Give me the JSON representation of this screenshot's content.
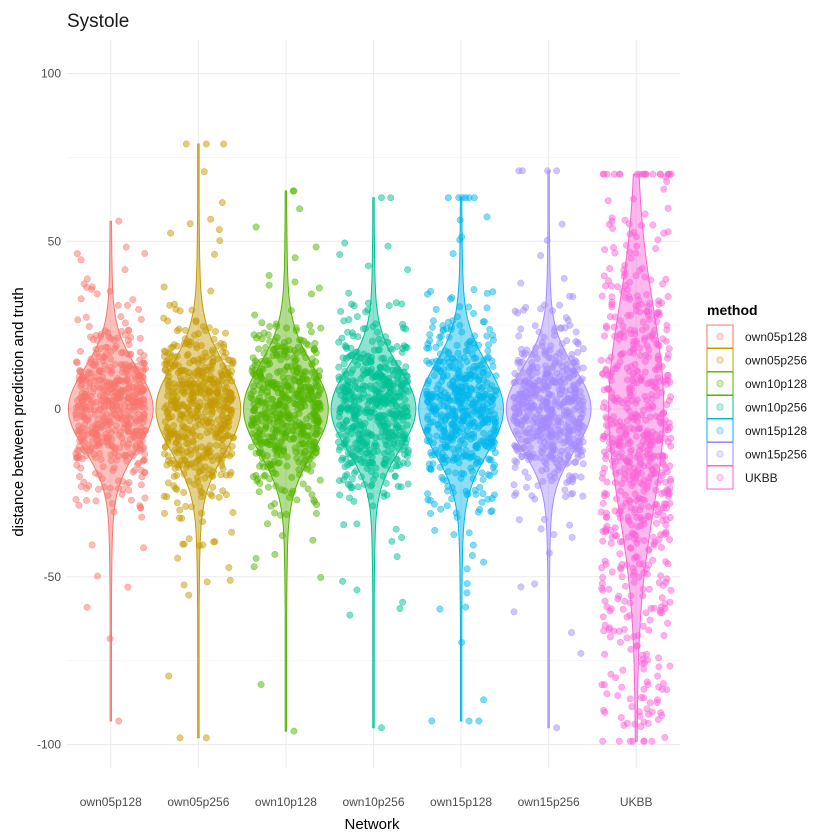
{
  "chart_data": {
    "type": "violin-jitter",
    "title": "Systole",
    "xlabel": "Network",
    "ylabel": "distance between prediction and truth",
    "ylim": [
      -107,
      110
    ],
    "yticks": [
      100,
      50,
      0,
      -50,
      -100
    ],
    "categories": [
      "own05p128",
      "own05p256",
      "own10p128",
      "own10p256",
      "own15p128",
      "own15p256",
      "UKBB"
    ],
    "legend": {
      "title": "method",
      "entries": [
        "own05p128",
        "own05p256",
        "own10p128",
        "own10p256",
        "own15p128",
        "own15p256",
        "UKBB"
      ],
      "position": "right"
    },
    "series": [
      {
        "name": "own05p128",
        "color": "#F8766D",
        "min": -93,
        "max": 56,
        "spread": 12,
        "n": 520
      },
      {
        "name": "own05p256",
        "color": "#C49A00",
        "min": -98,
        "max": 79,
        "spread": 13,
        "n": 520
      },
      {
        "name": "own10p128",
        "color": "#53B400",
        "min": -96,
        "max": 65,
        "spread": 13,
        "n": 520
      },
      {
        "name": "own10p256",
        "color": "#00C094",
        "min": -95,
        "max": 63,
        "spread": 12,
        "n": 520
      },
      {
        "name": "own15p128",
        "color": "#00B6EB",
        "min": -93,
        "max": 63,
        "spread": 13,
        "n": 520
      },
      {
        "name": "own15p256",
        "color": "#A58AFF",
        "min": -95,
        "max": 71,
        "spread": 12,
        "n": 520
      },
      {
        "name": "UKBB",
        "color": "#FB61D7",
        "min": -99,
        "max": 70,
        "spread": 30,
        "n": 700
      }
    ]
  }
}
